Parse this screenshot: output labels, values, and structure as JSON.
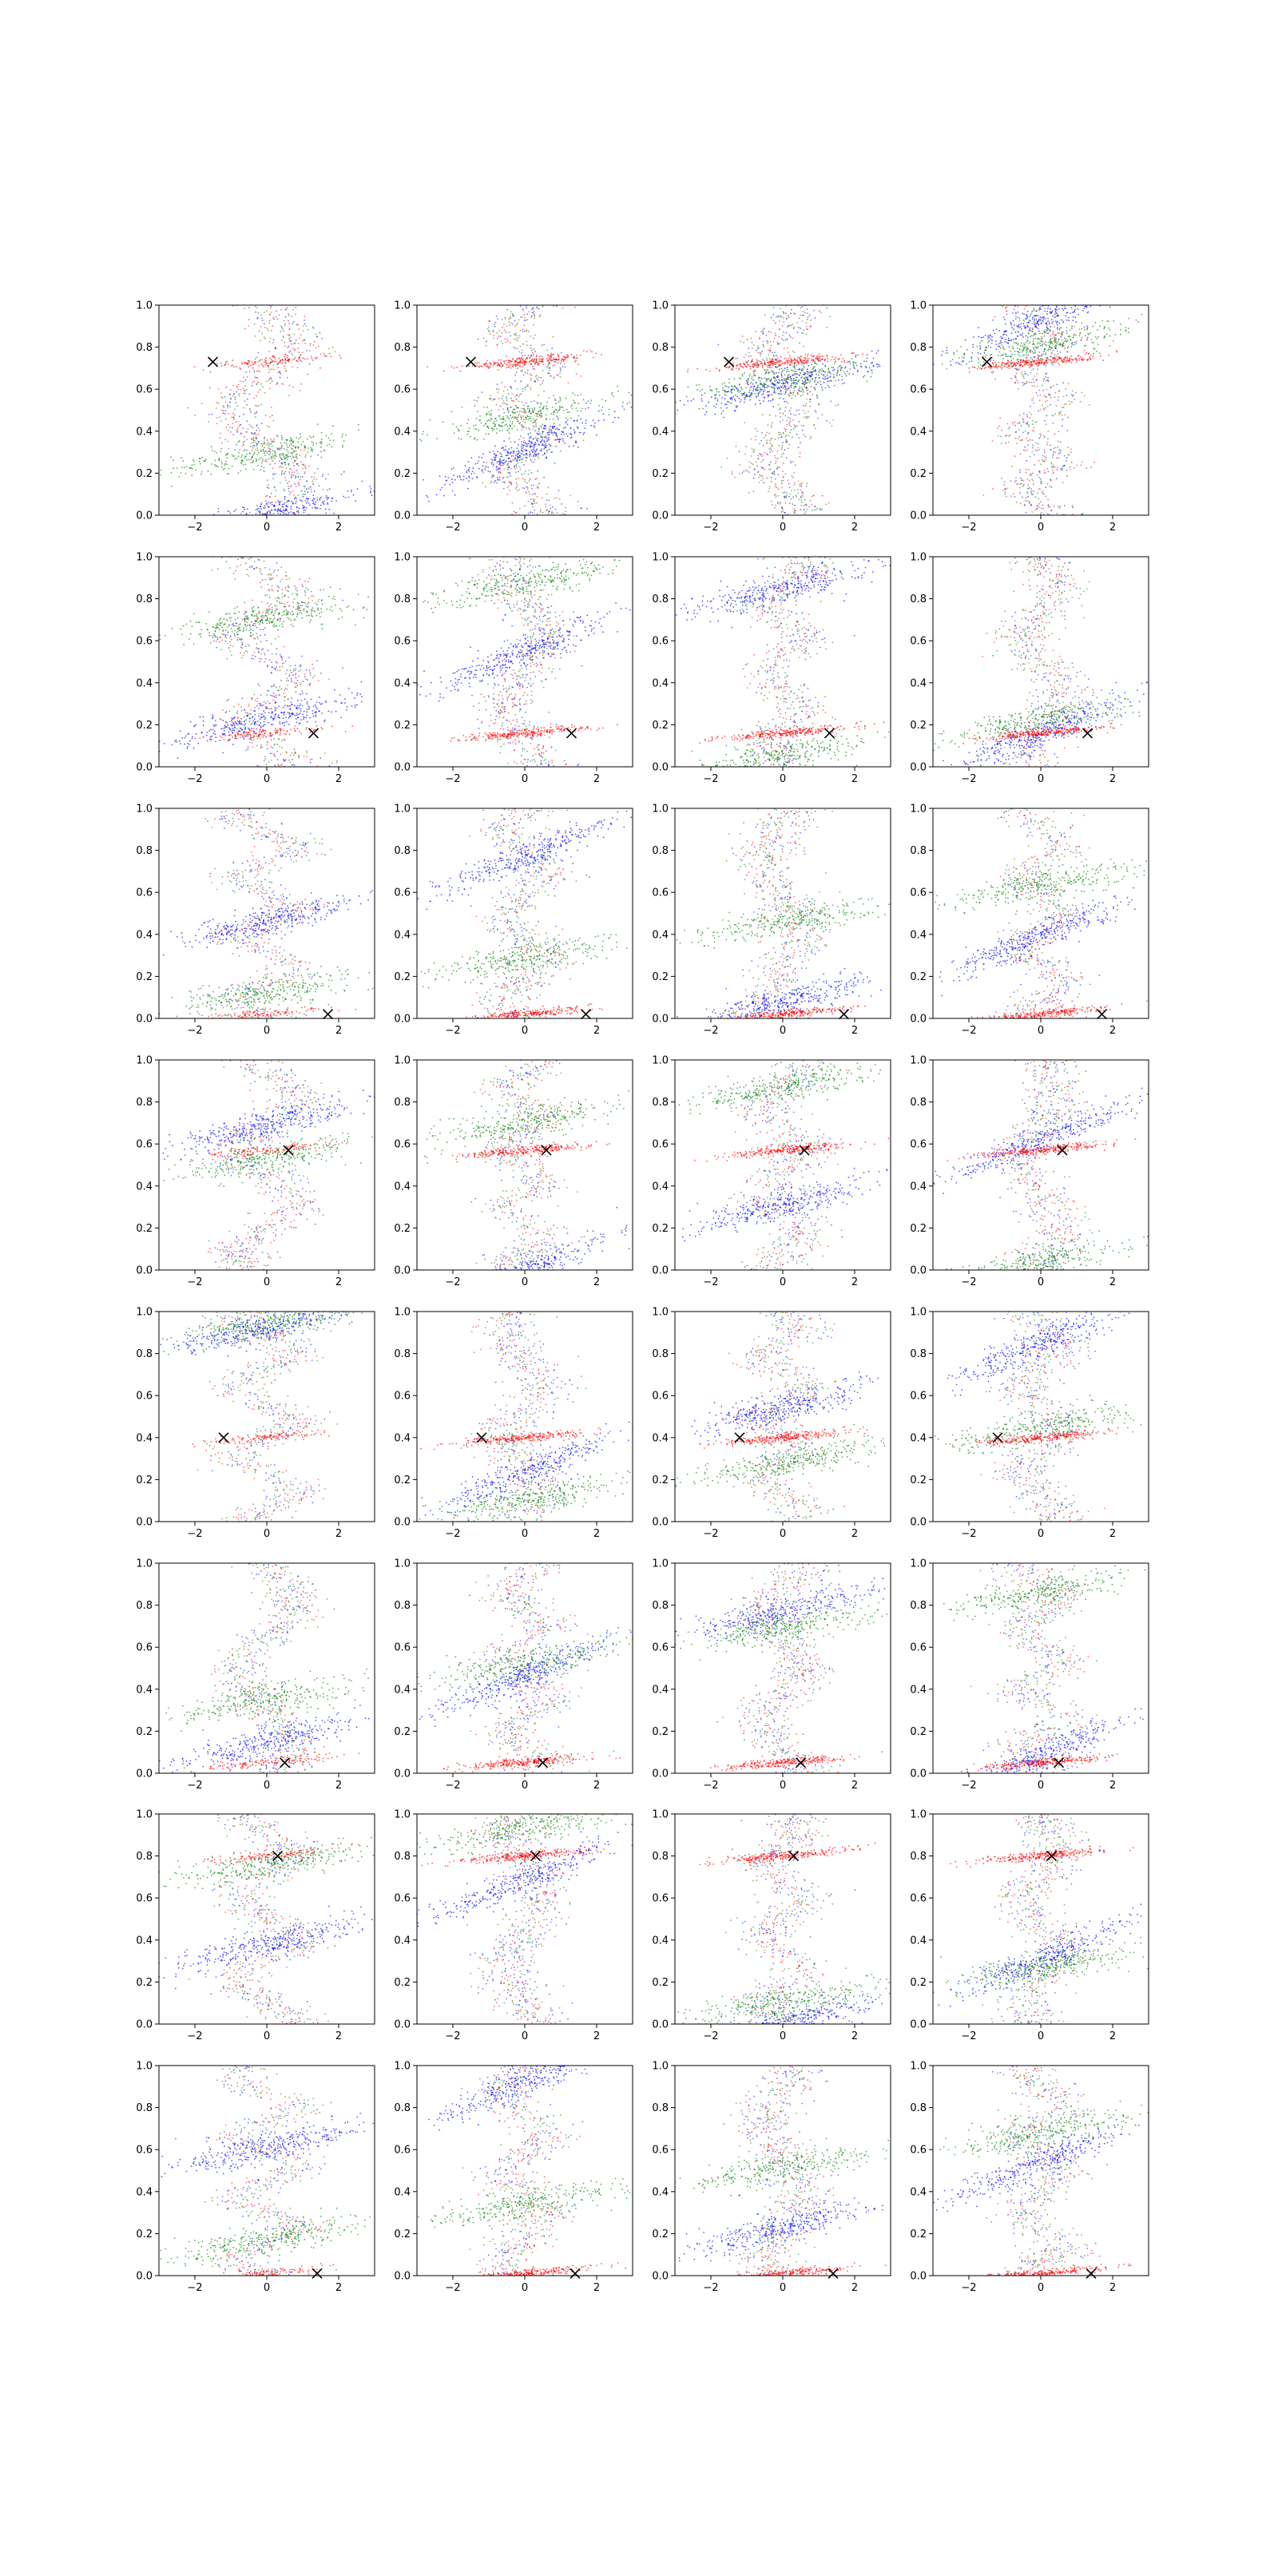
{
  "figure": {
    "rows": 8,
    "cols": 4,
    "colors": {
      "blue": "#0000ff",
      "green": "#008000",
      "red": "#ff0000",
      "marker": "#000000",
      "axes": "#000000"
    }
  },
  "chart_data": {
    "type": "scatter",
    "title": "",
    "xlabel": "",
    "ylabel": "",
    "xlim": [
      -3,
      3
    ],
    "ylim": [
      0,
      1
    ],
    "xticks": [
      -2,
      0,
      2
    ],
    "yticks": [
      0.0,
      0.2,
      0.4,
      0.6,
      0.8,
      1.0
    ],
    "xtick_labels": [
      "−2",
      "0",
      "2"
    ],
    "ytick_labels": [
      "0.0",
      "0.2",
      "0.4",
      "0.6",
      "0.8",
      "1.0"
    ],
    "grid": false,
    "series_colors": [
      "blue",
      "green",
      "red"
    ],
    "marker_symbol": "x",
    "rows": [
      {
        "marker": {
          "x": -1.5,
          "y": 0.73
        }
      },
      {
        "marker": {
          "x": 1.3,
          "y": 0.16
        }
      },
      {
        "marker": {
          "x": 1.7,
          "y": 0.02
        }
      },
      {
        "marker": {
          "x": 0.6,
          "y": 0.57
        }
      },
      {
        "marker": {
          "x": -1.2,
          "y": 0.4
        }
      },
      {
        "marker": {
          "x": 0.5,
          "y": 0.05
        }
      },
      {
        "marker": {
          "x": 0.3,
          "y": 0.8
        }
      },
      {
        "marker": {
          "x": 1.4,
          "y": 0.01
        }
      }
    ]
  }
}
